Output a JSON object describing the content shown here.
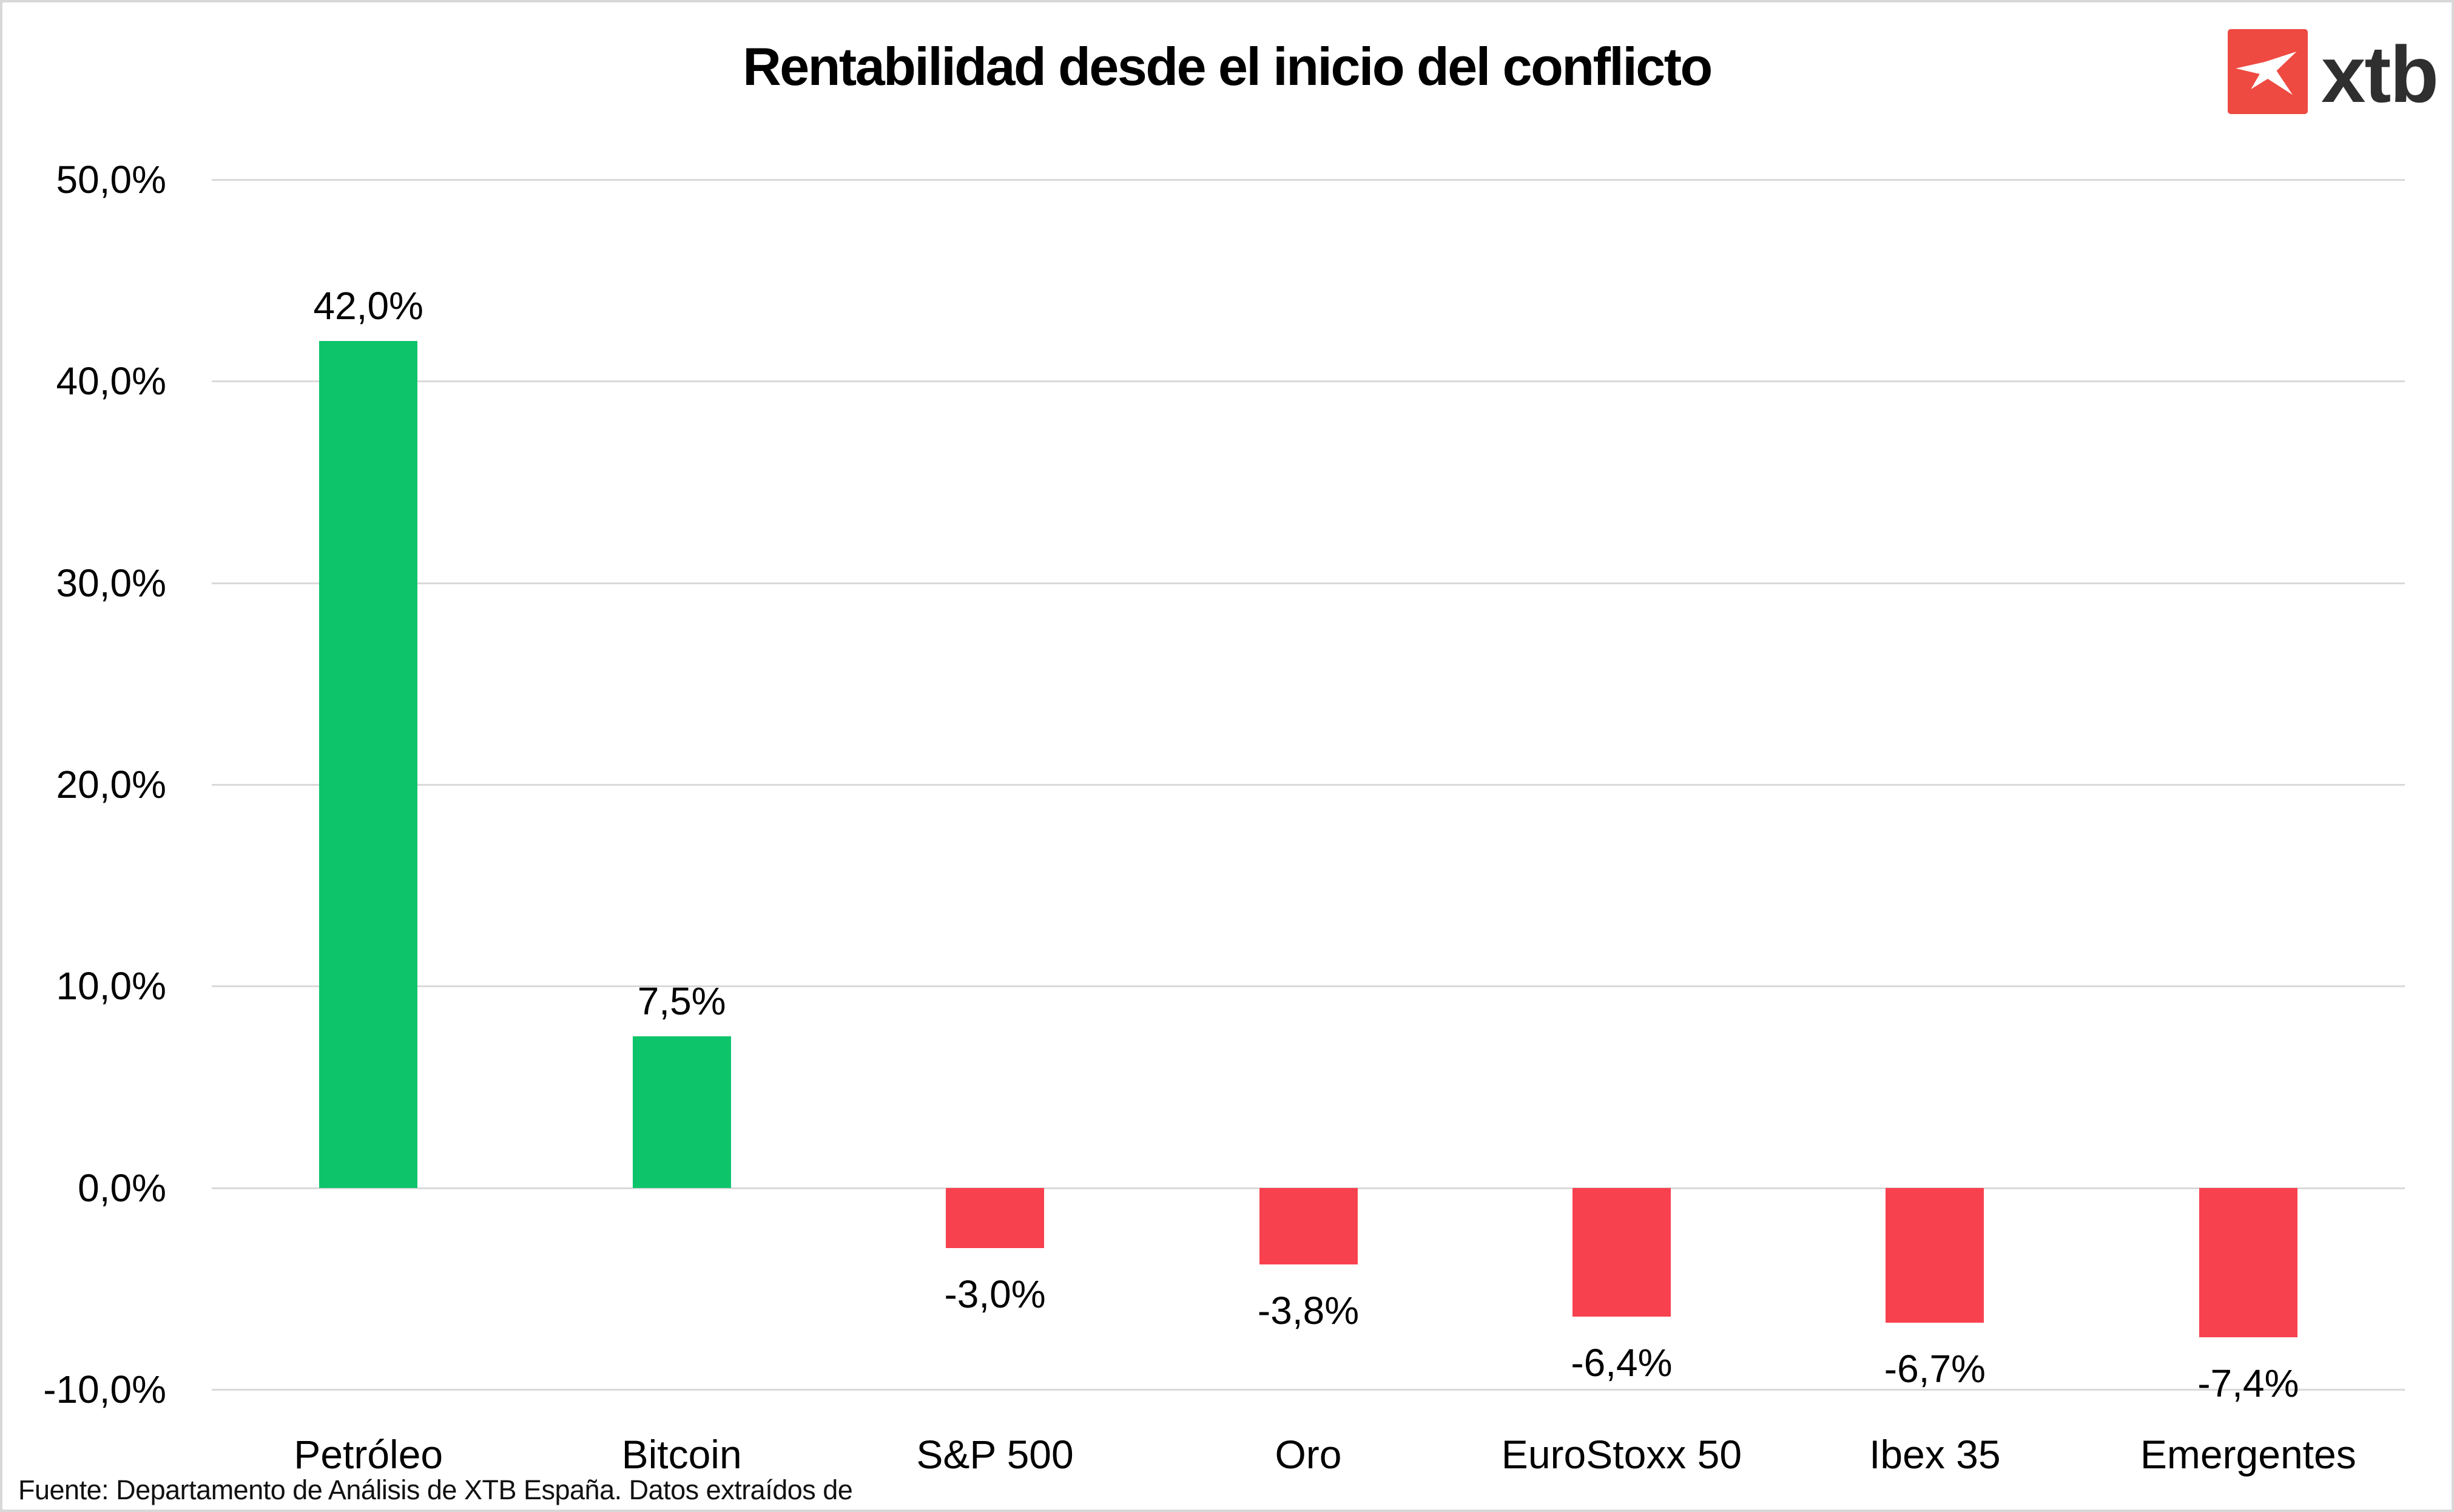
{
  "title": "Rentabilidad desde el inicio del conflicto",
  "logo": {
    "text": "xtb",
    "square_color": "#ee4a41",
    "text_color": "#2f2f2f",
    "icon": "xtb-x-mark"
  },
  "footer": {
    "text": "Fuente: Departamento de Análisis de XTB España. Datos extraídos de"
  },
  "colors": {
    "positive": "#0dc46b",
    "negative": "#f8414e",
    "gridline": "#d9d9d9",
    "border": "#d8d8d8",
    "text": "#000000"
  },
  "chart_data": {
    "type": "bar",
    "title": "Rentabilidad desde el inicio del conflicto",
    "categories": [
      "Petróleo",
      "Bitcoin",
      "S&P 500",
      "Oro",
      "EuroStoxx 50",
      "Ibex 35",
      "Emergentes"
    ],
    "values": [
      42.0,
      7.5,
      -3.0,
      -3.8,
      -6.4,
      -6.7,
      -7.4
    ],
    "value_labels": [
      "42,0%",
      "7,5%",
      "-3,0%",
      "-3,8%",
      "-6,4%",
      "-6,7%",
      "-7,4%"
    ],
    "y_ticks": [
      "50,0%",
      "40,0%",
      "30,0%",
      "20,0%",
      "10,0%",
      "0,0%",
      "-10,0%"
    ],
    "y_tick_values": [
      50,
      40,
      30,
      20,
      10,
      0,
      -10
    ],
    "ylim": [
      -10,
      50
    ],
    "xlabel": "",
    "ylabel": "",
    "grid": true,
    "legend": false,
    "bar_color_positive": "#0dc46b",
    "bar_color_negative": "#f8414e"
  }
}
